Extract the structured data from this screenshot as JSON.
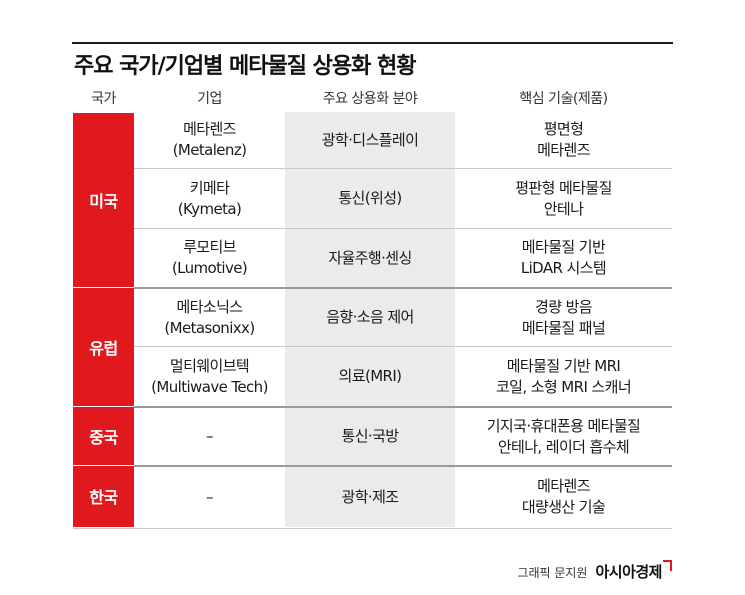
{
  "title": "주요 국가/기업별 메타물질 상용화 현황",
  "headers": {
    "country": "국가",
    "company": "기업",
    "field": "주요 상용화 분야",
    "tech": "핵심 기술(제품)"
  },
  "countries": {
    "us": "미국",
    "eu": "유럽",
    "cn": "중국",
    "kr": "한국"
  },
  "rows": [
    {
      "company": [
        "메타렌즈",
        "(Metalenz)"
      ],
      "field": [
        "광학·디스플레이"
      ],
      "tech": [
        "평면형",
        "메타렌즈"
      ]
    },
    {
      "company": [
        "키메타",
        "(Kymeta)"
      ],
      "field": [
        "통신(위성)"
      ],
      "tech": [
        "평판형 메타물질",
        "안테나"
      ]
    },
    {
      "company": [
        "루모티브",
        "(Lumotive)"
      ],
      "field": [
        "자율주행·센싱"
      ],
      "tech": [
        "메타물질 기반",
        "LiDAR 시스템"
      ]
    },
    {
      "company": [
        "메타소닉스",
        "(Metasonixx)"
      ],
      "field": [
        "음향·소음 제어"
      ],
      "tech": [
        "경량 방음",
        "메타물질 패널"
      ]
    },
    {
      "company": [
        "멀티웨이브텍",
        "(Multiwave Tech)"
      ],
      "field": [
        "의료(MRI)"
      ],
      "tech": [
        "메타물질 기반 MRI",
        "코일, 소형 MRI 스캐너"
      ]
    },
    {
      "company": [
        "–"
      ],
      "field": [
        "통신·국방"
      ],
      "tech": [
        "기지국·휴대폰용 메타물질",
        "안테나, 레이더 흡수체"
      ]
    },
    {
      "company": [
        "–"
      ],
      "field": [
        "광학·제조"
      ],
      "tech": [
        "메타렌즈",
        "대량생산 기술"
      ]
    }
  ],
  "credit": {
    "byline": "그래픽 문지원",
    "brand": "아시아경제"
  },
  "colors": {
    "accent": "#e0191f",
    "field_bg": "#ebebeb"
  }
}
